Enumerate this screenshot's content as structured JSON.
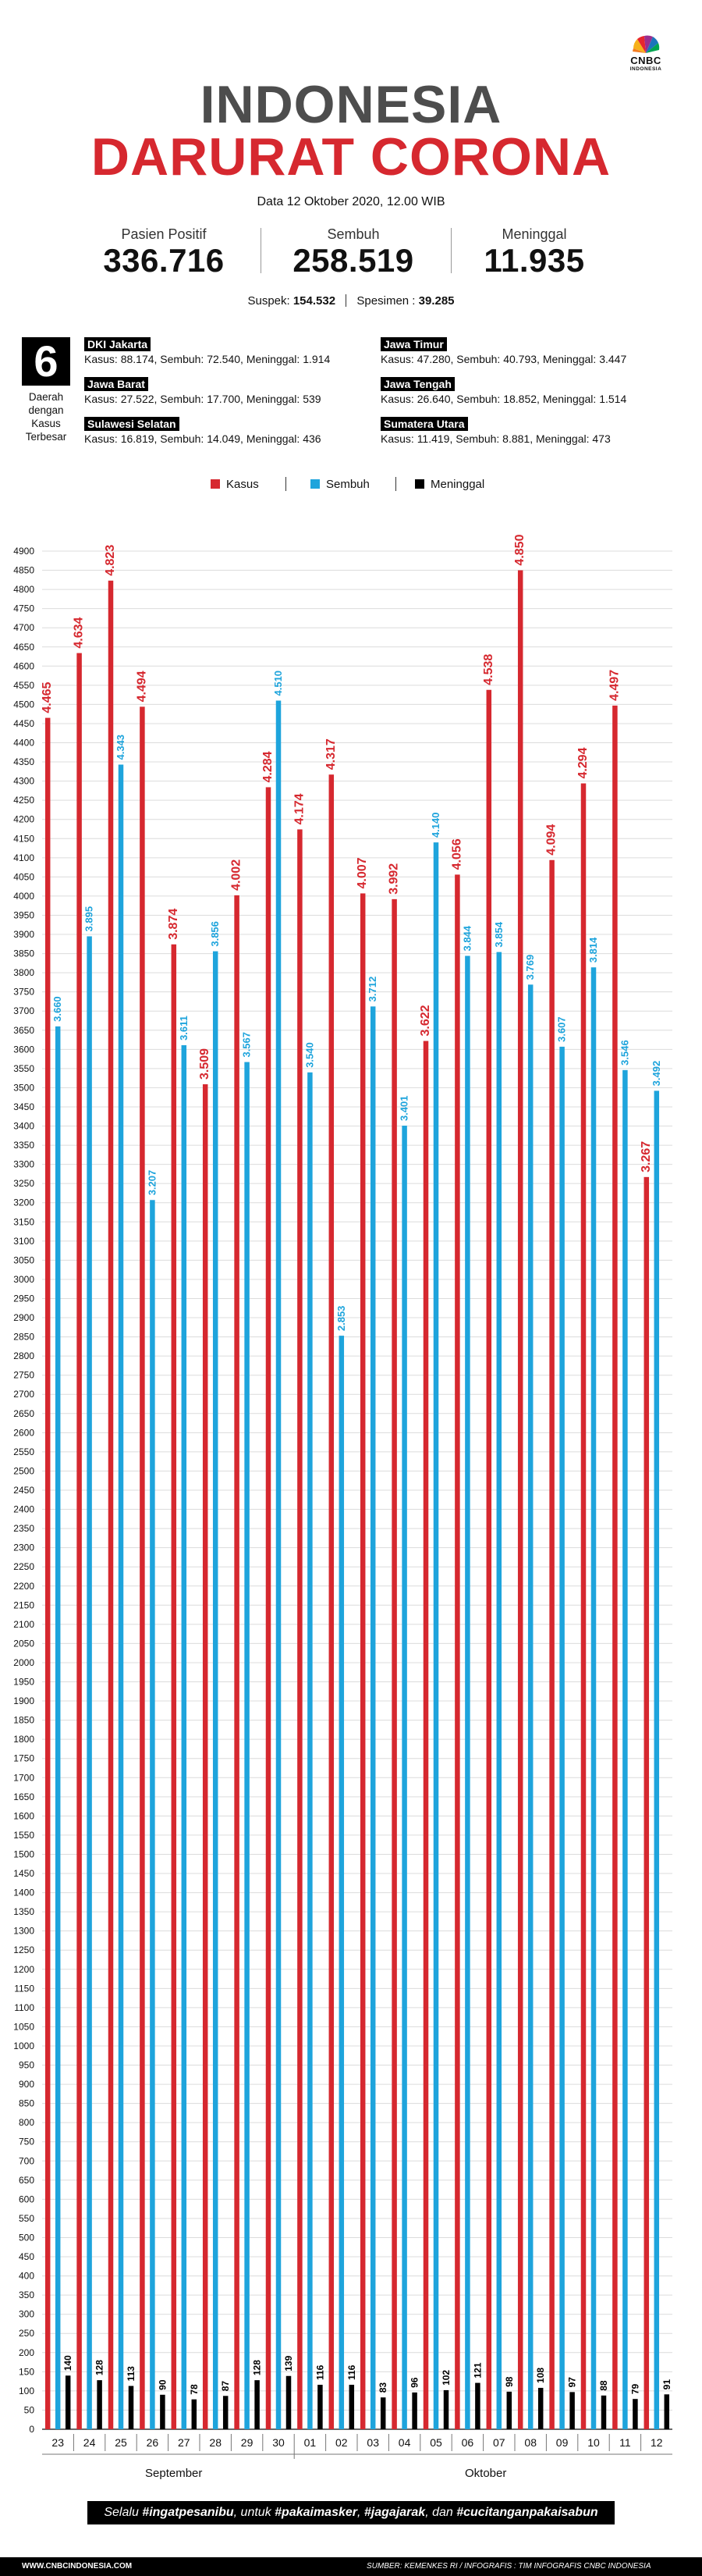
{
  "header": {
    "brand": "CNBC",
    "brand_sub": "INDONESIA",
    "title_line1": "INDONESIA",
    "title_line2": "DARURAT CORONA",
    "date": "Data 12 Oktober 2020, 12.00 WIB"
  },
  "stats": [
    {
      "label": "Pasien Positif",
      "value": "336.716"
    },
    {
      "label": "Sembuh",
      "value": "258.519"
    },
    {
      "label": "Meninggal",
      "value": "11.935"
    }
  ],
  "sub_stats": {
    "suspek_label": "Suspek:",
    "suspek_value": "154.532",
    "spesimen_label": "Spesimen :",
    "spesimen_value": "39.285"
  },
  "regions_intro": {
    "number": "6",
    "text": "Daerah dengan Kasus Terbesar"
  },
  "regions": [
    {
      "name": "DKI Jakarta",
      "stats": "Kasus: 88.174, Sembuh: 72.540, Meninggal: 1.914"
    },
    {
      "name": "Jawa Timur",
      "stats": "Kasus: 47.280, Sembuh: 40.793, Meninggal: 3.447"
    },
    {
      "name": "Jawa Barat",
      "stats": "Kasus: 27.522, Sembuh: 17.700, Meninggal: 539"
    },
    {
      "name": "Jawa Tengah",
      "stats": "Kasus: 26.640, Sembuh: 18.852, Meninggal: 1.514"
    },
    {
      "name": "Sulawesi Selatan",
      "stats": "Kasus: 16.819, Sembuh: 14.049, Meninggal: 436"
    },
    {
      "name": "Sumatera Utara",
      "stats": "Kasus: 11.419, Sembuh: 8.881, Meninggal: 473"
    }
  ],
  "colors": {
    "kasus": "#d6282f",
    "sembuh": "#1ea4dc",
    "meninggal": "#000000",
    "title_gray": "#4d4d4d"
  },
  "chart_data": {
    "type": "bar",
    "categories": [
      "23",
      "24",
      "25",
      "26",
      "27",
      "28",
      "29",
      "30",
      "01",
      "02",
      "03",
      "04",
      "05",
      "06",
      "07",
      "08",
      "09",
      "10",
      "11",
      "12"
    ],
    "category_groups": [
      {
        "label": "September",
        "from": 0,
        "to": 7
      },
      {
        "label": "Oktober",
        "from": 8,
        "to": 19
      }
    ],
    "series": [
      {
        "name": "Kasus",
        "color": "#d6282f",
        "values": [
          4465,
          4634,
          4823,
          4494,
          3874,
          3509,
          4002,
          4284,
          4174,
          4317,
          4007,
          3992,
          3622,
          4056,
          4538,
          4850,
          4094,
          4294,
          4497,
          3267
        ],
        "labels": [
          "4.465",
          "4.634",
          "4.823",
          "4.494",
          "3.874",
          "3.509",
          "4.002",
          "4.284",
          "4.174",
          "4.317",
          "4.007",
          "3.992",
          "3.622",
          "4.056",
          "4.538",
          "4.850",
          "4.094",
          "4.294",
          "4.497",
          "3.267"
        ]
      },
      {
        "name": "Sembuh",
        "color": "#1ea4dc",
        "values": [
          3660,
          3895,
          4343,
          3207,
          3611,
          3856,
          3567,
          4510,
          3540,
          2853,
          3712,
          3401,
          4140,
          3844,
          3854,
          3769,
          3607,
          3814,
          3546,
          3492
        ],
        "labels": [
          "3.660",
          "3.895",
          "4.343",
          "3.207",
          "3.611",
          "3.856",
          "3.567",
          "4.510",
          "3.540",
          "2.853",
          "3.712",
          "3.401",
          "4.140",
          "3.844",
          "3.854",
          "3.769",
          "3.607",
          "3.814",
          "3.546",
          "3.492"
        ]
      },
      {
        "name": "Meninggal",
        "color": "#000000",
        "values": [
          140,
          128,
          113,
          90,
          78,
          87,
          128,
          139,
          116,
          116,
          83,
          96,
          102,
          121,
          98,
          108,
          97,
          88,
          79,
          91
        ],
        "labels": [
          "140",
          "128",
          "113",
          "90",
          "78",
          "87",
          "128",
          "139",
          "116",
          "116",
          "83",
          "96",
          "102",
          "121",
          "98",
          "108",
          "97",
          "88",
          "79",
          "91"
        ]
      }
    ],
    "ylim": [
      0,
      4900
    ],
    "ytick_step": 50,
    "grid": true,
    "legend": "top-center"
  },
  "footer": {
    "hashtag_prefix": "Selalu",
    "tag1": "#ingatpesanibu",
    "mid1": ", untuk",
    "tag2": "#pakaimasker",
    "sep": ",",
    "tag3": "#jagajarak",
    "mid2": ", dan",
    "tag4": "#cucitanganpakaisabun",
    "site": "WWW.CNBCINDONESIA.COM",
    "source": "SUMBER: KEMENKES RI / INFOGRAFIS : TIM INFOGRAFIS CNBC INDONESIA"
  }
}
